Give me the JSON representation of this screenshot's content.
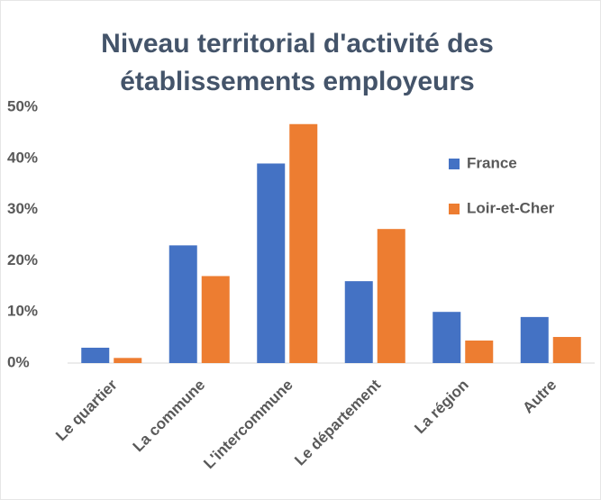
{
  "chart_data": {
    "type": "bar",
    "title": "Niveau territorial d'activité des établissements employeurs",
    "categories": [
      "Le quartier",
      "La commune",
      "L'intercommune",
      "Le département",
      "La région",
      "Autre"
    ],
    "series": [
      {
        "name": "France",
        "color": "#4472c4",
        "values": [
          3,
          23,
          39,
          16,
          10,
          9
        ]
      },
      {
        "name": "Loir-et-Cher",
        "color": "#ed7d31",
        "values": [
          1,
          17,
          46.7,
          26.2,
          4.4,
          5.1
        ]
      }
    ],
    "ylim": [
      0,
      50
    ],
    "yticks": [
      {
        "value": 0,
        "label": "0%"
      },
      {
        "value": 10,
        "label": "10%"
      },
      {
        "value": 20,
        "label": "20%"
      },
      {
        "value": 30,
        "label": "30%"
      },
      {
        "value": 40,
        "label": "40%"
      },
      {
        "value": 50,
        "label": "50%"
      }
    ],
    "grid": false,
    "legend": "right"
  }
}
